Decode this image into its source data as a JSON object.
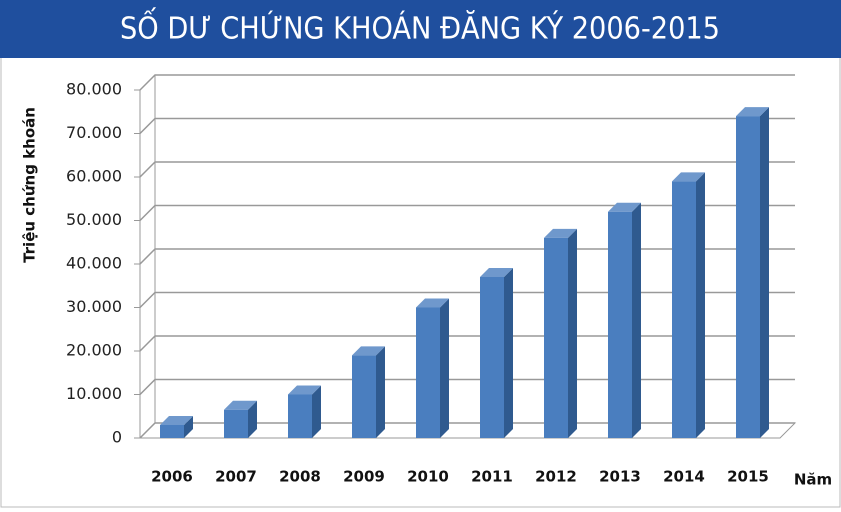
{
  "chart_data": {
    "type": "bar3d",
    "title": "SỐ DƯ CHỨNG KHOÁN ĐĂNG KÝ 2006-2015",
    "y_label": "Triệu chứng khoán",
    "x_label": "Năm",
    "categories": [
      "2006",
      "2007",
      "2008",
      "2009",
      "2010",
      "2011",
      "2012",
      "2013",
      "2014",
      "2015"
    ],
    "values": [
      3000,
      6500,
      10000,
      19000,
      30000,
      37000,
      46000,
      52000,
      59000,
      74000
    ],
    "color": "#4a7ebf",
    "ylim": [
      0,
      80000
    ],
    "yticks": [
      0,
      {
        "value": 10000,
        "label": "10.000"
      },
      {
        "value": 20000,
        "label": "20.000"
      },
      {
        "value": 30000,
        "label": "30.000"
      },
      {
        "value": 40000,
        "label": "40.000"
      },
      {
        "value": 50000,
        "label": "50.000"
      },
      {
        "value": 60000,
        "label": "60.000"
      },
      {
        "value": 70000,
        "label": "70.000"
      },
      {
        "value": 80000,
        "label": "80.000"
      }
    ],
    "grid": true
  }
}
